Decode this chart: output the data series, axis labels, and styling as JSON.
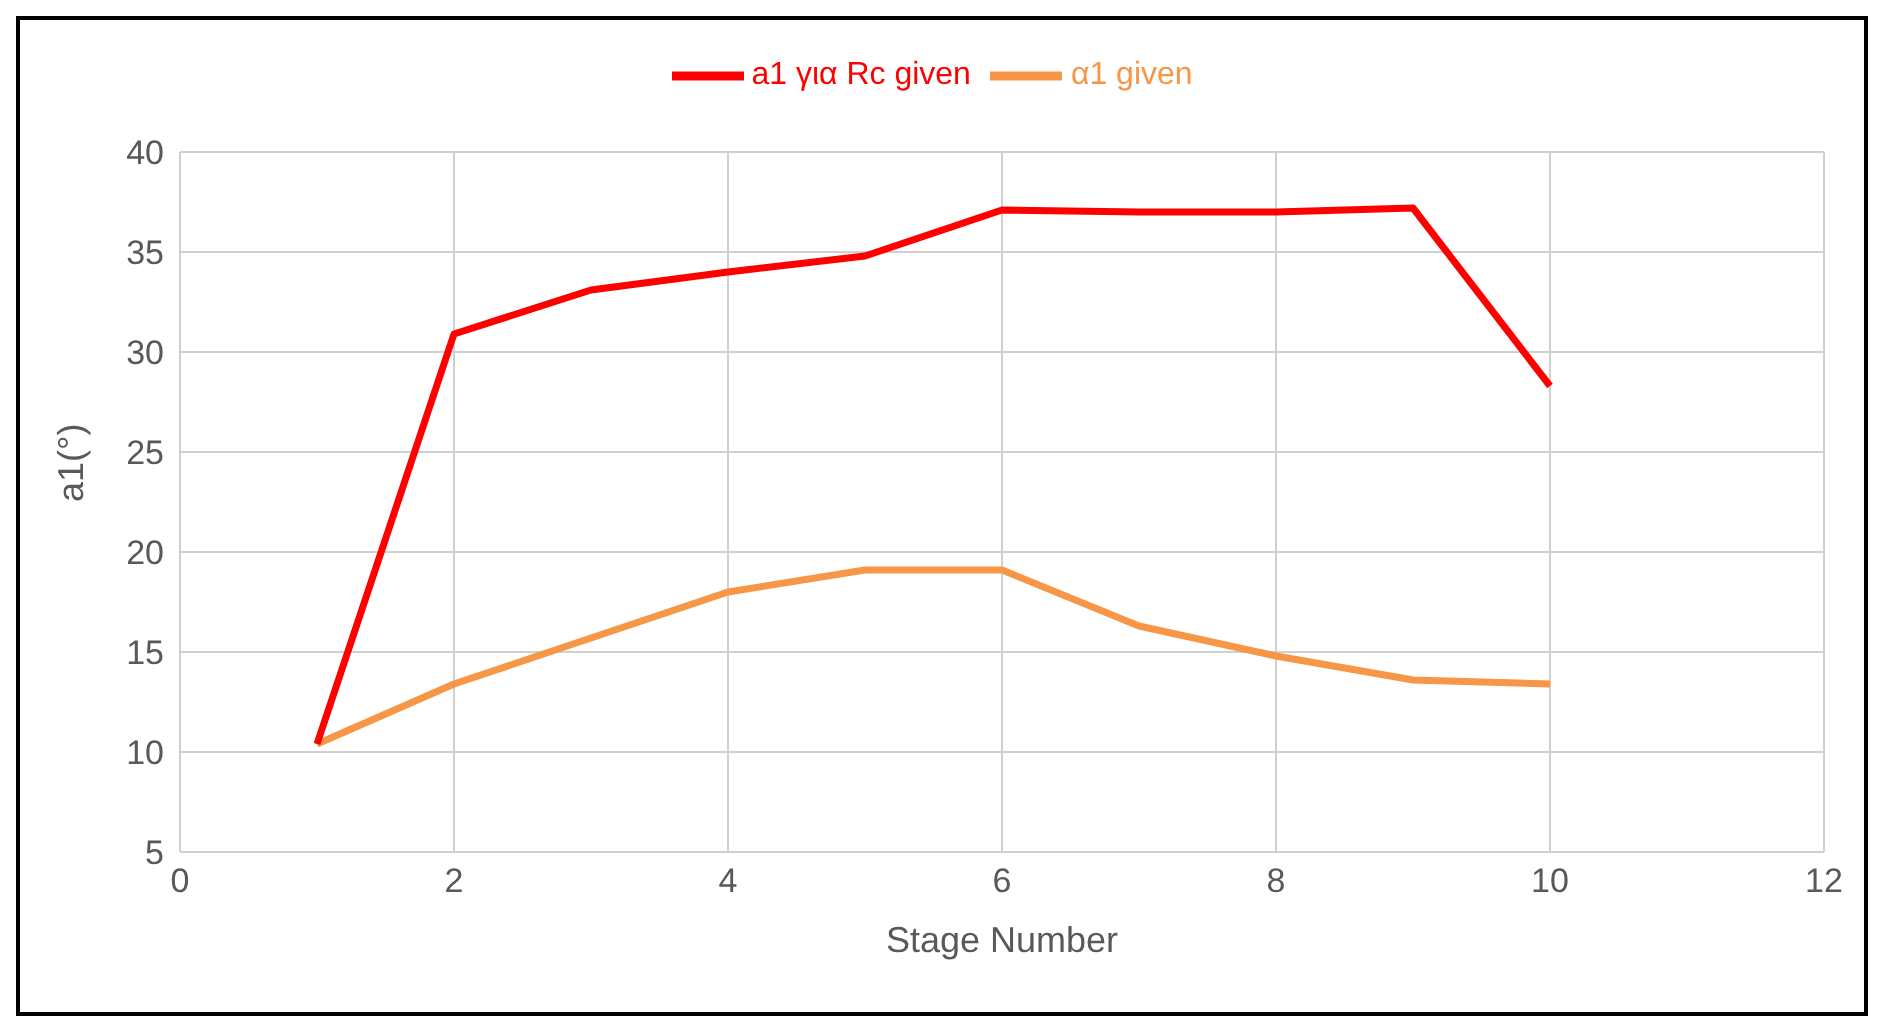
{
  "chart_data": {
    "type": "line",
    "xlabel": "Stage Number",
    "ylabel": "a1(°)",
    "x": [
      1,
      2,
      3,
      4,
      5,
      6,
      7,
      8,
      9,
      10
    ],
    "series": [
      {
        "name": "α1 given",
        "color": "#f79646",
        "values": [
          10.4,
          13.4,
          15.7,
          18.0,
          19.1,
          19.1,
          16.3,
          14.8,
          13.6,
          13.4
        ]
      },
      {
        "name": "a1 για Rc given",
        "color": "#ff0000",
        "values": [
          10.4,
          30.9,
          33.1,
          34.0,
          34.8,
          37.1,
          37.0,
          37.0,
          37.2,
          28.3
        ]
      }
    ],
    "xlim": [
      0,
      12
    ],
    "xticks": [
      0,
      2,
      4,
      6,
      8,
      10,
      12
    ],
    "ylim": [
      5,
      40
    ],
    "yticks": [
      5,
      10,
      15,
      20,
      25,
      30,
      35,
      40
    ],
    "grid": true,
    "legend": "top",
    "marker": "none",
    "line_style": "solid"
  }
}
